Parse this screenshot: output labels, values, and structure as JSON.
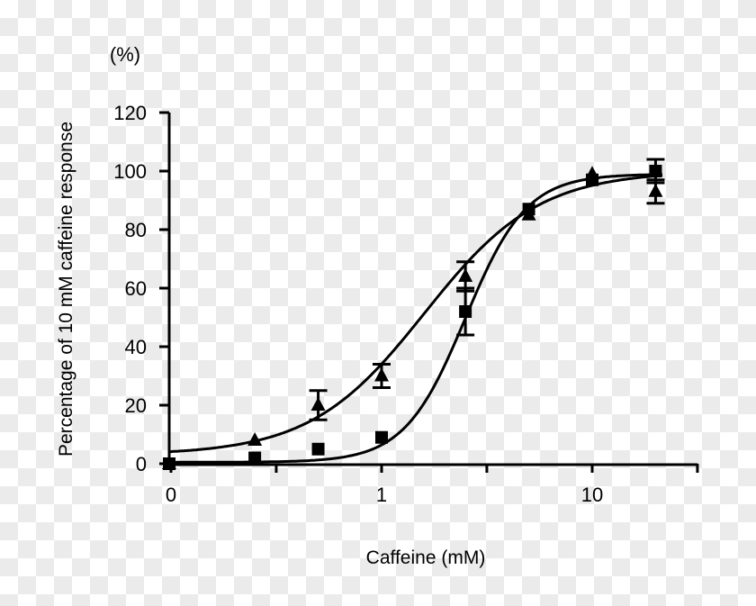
{
  "chart_data": {
    "type": "line",
    "title": "",
    "unit_label": "(%)",
    "xlabel": "Caffeine (mM)",
    "ylabel": "Percentage of 10 mM caffeine response",
    "xscale": "log",
    "x_ticks": [
      {
        "value": 0.1,
        "label": "0"
      },
      {
        "value": 0.316,
        "label": ""
      },
      {
        "value": 1,
        "label": "1"
      },
      {
        "value": 3.16,
        "label": ""
      },
      {
        "value": 10,
        "label": "10"
      },
      {
        "value": 31.6,
        "label": ""
      }
    ],
    "y_ticks": [
      0,
      20,
      40,
      60,
      80,
      100,
      120
    ],
    "ylim": [
      0,
      120
    ],
    "xlim": [
      0.1,
      31.6
    ],
    "grid": false,
    "legend": null,
    "x": [
      0,
      0.25,
      0.5,
      1,
      2.5,
      5,
      10,
      20
    ],
    "series": [
      {
        "name": "triangle",
        "marker": "triangle",
        "values": [
          0,
          8,
          20,
          30,
          64,
          85,
          99,
          93
        ],
        "errors": [
          0,
          0,
          5,
          4,
          5,
          0,
          0,
          4
        ],
        "fit": {
          "bottom": 3,
          "top": 100,
          "ec50": 1.6,
          "hill": 1.6
        }
      },
      {
        "name": "square",
        "marker": "square",
        "values": [
          0,
          2,
          5,
          9,
          52,
          87,
          97,
          100
        ],
        "errors": [
          0,
          0,
          0,
          0,
          8,
          0,
          0,
          4
        ],
        "fit": {
          "bottom": 0.5,
          "top": 99,
          "ec50": 2.5,
          "hill": 3.0
        }
      }
    ]
  }
}
